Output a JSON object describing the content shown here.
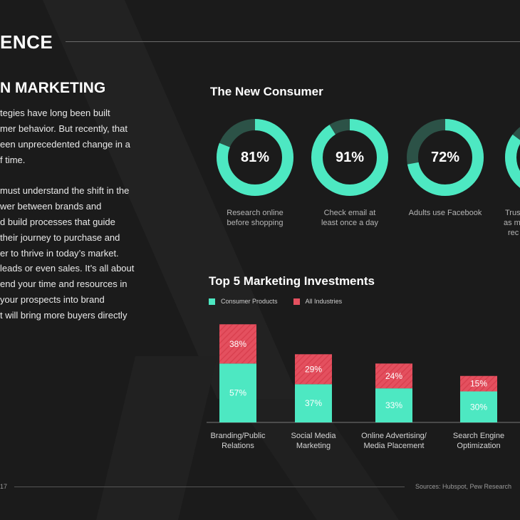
{
  "header": {
    "title": "ENCE",
    "section_heading": "N MARKETING"
  },
  "body": {
    "paragraphs": [
      [
        "tegies have long been built",
        "mer behavior. But recently, that",
        "een unprecedented change in a",
        "f time."
      ],
      [
        "must understand the shift in the",
        "wer between brands and",
        "d build processes that guide",
        "their journey to purchase and",
        "er to thrive in today’s market."
      ],
      [
        "leads or even sales. It’s all about",
        "end your time and resources in",
        "your prospects into brand",
        "t will bring more buyers directly"
      ]
    ]
  },
  "new_consumer": {
    "title": "The New Consumer",
    "stats": [
      {
        "value_label": "81%",
        "value": 81,
        "label_lines": [
          "Research online",
          "before shopping"
        ]
      },
      {
        "value_label": "91%",
        "value": 91,
        "label_lines": [
          "Check email at",
          "least once a day"
        ]
      },
      {
        "value_label": "72%",
        "value": 72,
        "label_lines": [
          "Adults use Facebook"
        ]
      },
      {
        "value_label": "",
        "value": 85,
        "label_lines": [
          "Trus",
          "as m",
          "rec"
        ]
      }
    ]
  },
  "chart_data": {
    "type": "bar",
    "stacked": true,
    "title": "Top 5 Marketing Investments",
    "categories": [
      [
        "Branding/Public",
        "Relations"
      ],
      [
        "Social Media",
        "Marketing"
      ],
      [
        "Online Advertising/",
        "Media Placement"
      ],
      [
        "Search Engine",
        "Optimization"
      ]
    ],
    "series": [
      {
        "name": "Consumer Products",
        "color": "#4de8c2",
        "values": [
          57,
          37,
          33,
          30
        ],
        "labels": [
          "57%",
          "37%",
          "33%",
          "30%"
        ]
      },
      {
        "name": "All Industries",
        "color": "#e4505f",
        "values": [
          38,
          29,
          24,
          15
        ],
        "labels": [
          "38%",
          "29%",
          "24%",
          "15%"
        ]
      }
    ],
    "legend_position": "top-left",
    "grid": false
  },
  "footer": {
    "page_number": "17",
    "sources": "Sources: Hubspot, Pew Research"
  },
  "colors": {
    "background": "#1b1b1b",
    "accent": "#4de8c2",
    "accent_dark": "#2c5247",
    "red": "#e4505f"
  }
}
